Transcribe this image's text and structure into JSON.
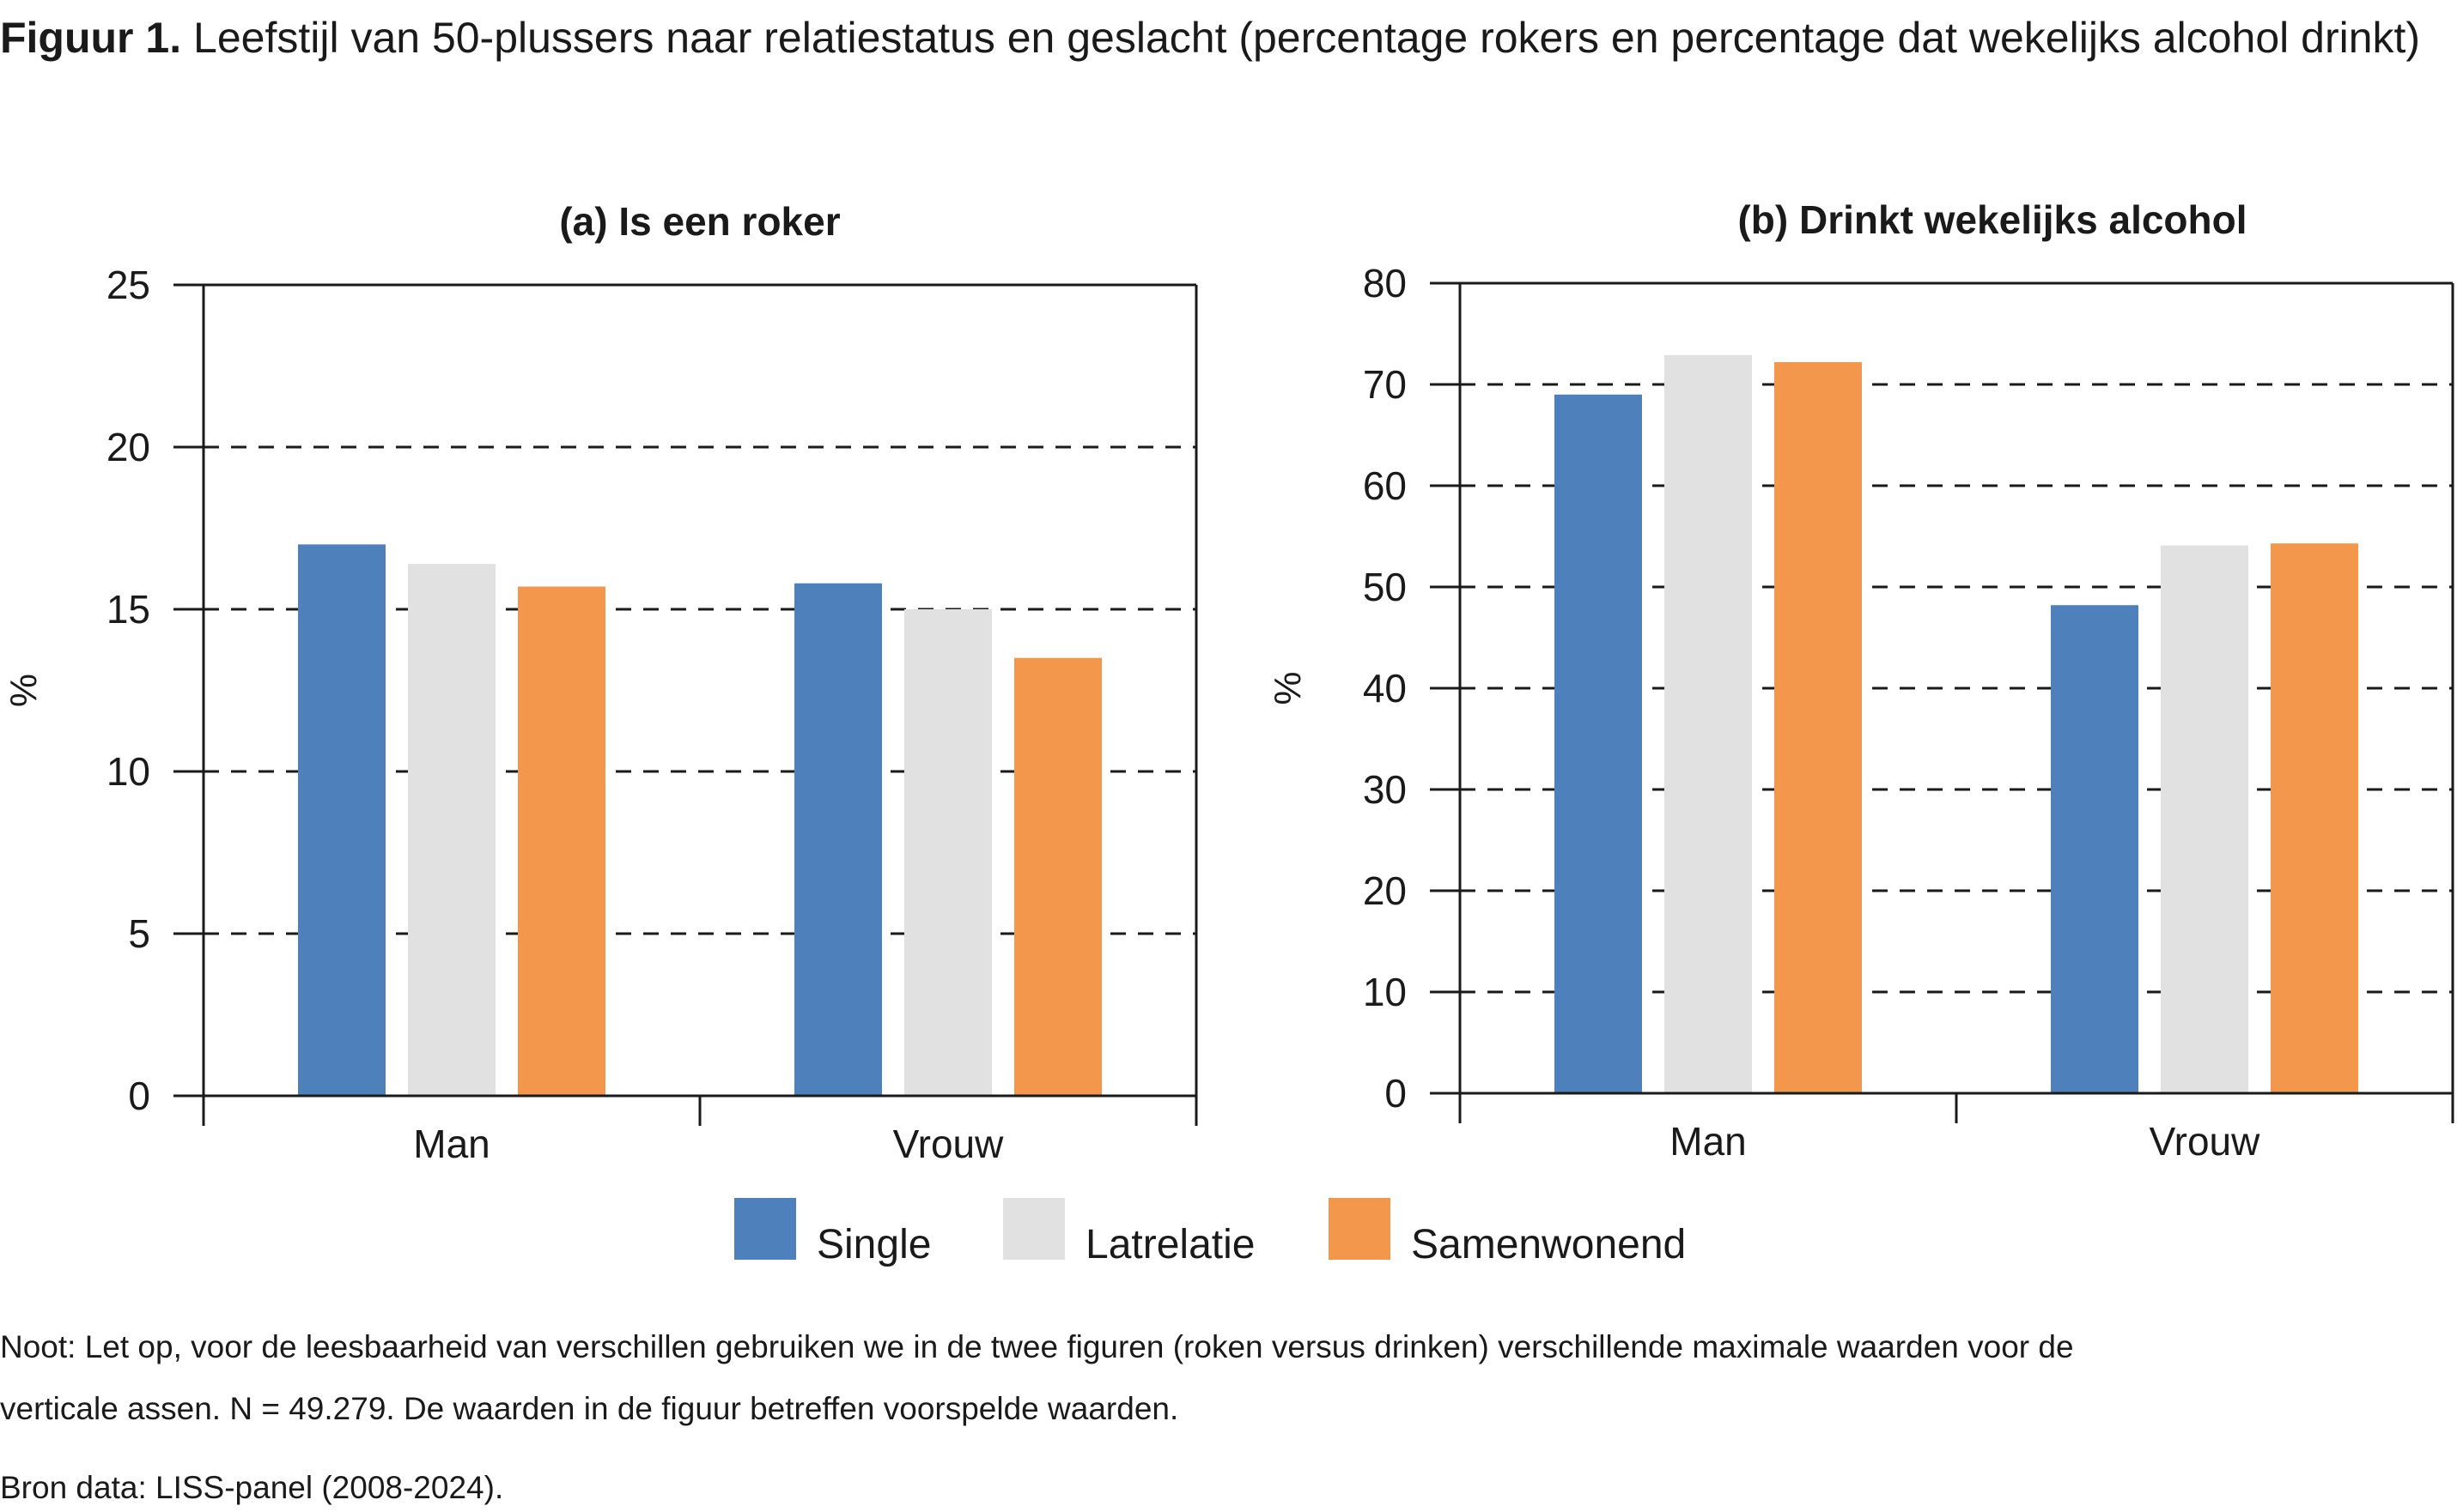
{
  "figure": {
    "label": "Figuur 1.",
    "title": "Leefstijl van 50-plussers naar relatiestatus en geslacht (percentage rokers en percentage dat wekelijks alcohol drinkt)"
  },
  "colors": {
    "Single": "#4e80bb",
    "Latrelatie": "#e1e1e1",
    "Samenwonend": "#f2974b"
  },
  "chart_data": [
    {
      "type": "bar",
      "title": "(a) Is een roker",
      "ylabel": "%",
      "categories": [
        "Man",
        "Vrouw"
      ],
      "ylim": [
        0,
        25
      ],
      "yticks": [
        0,
        5,
        10,
        15,
        20,
        25
      ],
      "grid": true,
      "series": [
        {
          "name": "Single",
          "values": [
            17.0,
            15.8
          ]
        },
        {
          "name": "Latrelatie",
          "values": [
            16.4,
            15.0
          ]
        },
        {
          "name": "Samenwonend",
          "values": [
            15.7,
            13.5
          ]
        }
      ]
    },
    {
      "type": "bar",
      "title": "(b) Drinkt wekelijks alcohol",
      "ylabel": "%",
      "categories": [
        "Man",
        "Vrouw"
      ],
      "ylim": [
        0,
        80
      ],
      "yticks": [
        0,
        10,
        20,
        30,
        40,
        50,
        60,
        70,
        80
      ],
      "grid": true,
      "series": [
        {
          "name": "Single",
          "values": [
            69.0,
            48.2
          ]
        },
        {
          "name": "Latrelatie",
          "values": [
            72.9,
            54.1
          ]
        },
        {
          "name": "Samenwonend",
          "values": [
            72.2,
            54.3
          ]
        }
      ]
    }
  ],
  "legend": {
    "position": "bottom",
    "items": [
      "Single",
      "Latrelatie",
      "Samenwonend"
    ]
  },
  "notes": {
    "line1": "Noot: Let op, voor de leesbaarheid van verschillen gebruiken we in de twee figuren (roken versus drinken) verschillende maximale waarden voor de",
    "line2": "verticale assen. N = 49.279. De waarden in de figuur betreffen voorspelde waarden.",
    "source": "Bron data: LISS-panel (2008-2024)."
  }
}
